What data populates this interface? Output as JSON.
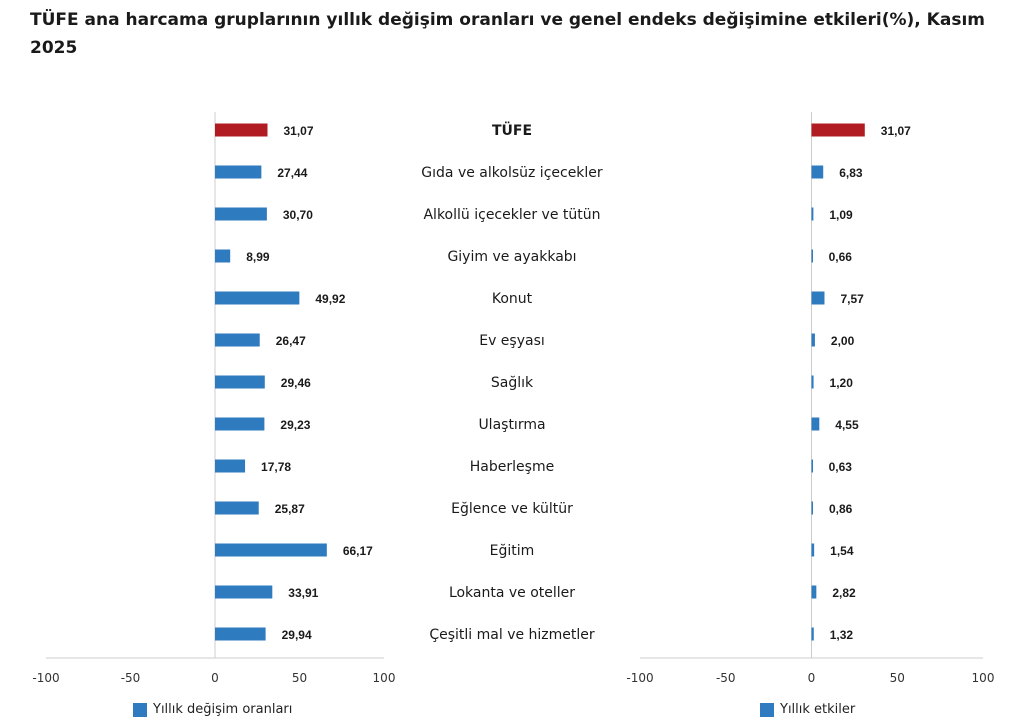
{
  "title": "TÜFE ana harcama gruplarının yıllık değişim oranları ve genel endeks değişimine etkileri(%), Kasım 2025",
  "colors": {
    "highlight": "#B01C22",
    "bar": "#2E7BBF",
    "axis": "#cccccc"
  },
  "chart_data": {
    "type": "bar",
    "orientation": "horizontal",
    "categories": [
      "TÜFE",
      "Gıda ve alkolsüz içecekler",
      "Alkollü içecekler ve tütün",
      "Giyim ve ayakkabı",
      "Konut",
      "Ev eşyası",
      "Sağlık",
      "Ulaştırma",
      "Haberleşme",
      "Eğlence ve kültür",
      "Eğitim",
      "Lokanta ve oteller",
      "Çeşitli mal ve hizmetler"
    ],
    "series": [
      {
        "name": "Yıllık değişim oranları",
        "values": [
          31.07,
          27.44,
          30.7,
          8.99,
          49.92,
          26.47,
          29.46,
          29.23,
          17.78,
          25.87,
          66.17,
          33.91,
          29.94
        ],
        "labels": [
          "31,07",
          "27,44",
          "30,70",
          "8,99",
          "49,92",
          "26,47",
          "29,46",
          "29,23",
          "17,78",
          "25,87",
          "66,17",
          "33,91",
          "29,94"
        ]
      },
      {
        "name": "Yıllık etkiler",
        "values": [
          31.07,
          6.83,
          1.09,
          0.66,
          7.57,
          2.0,
          1.2,
          4.55,
          0.63,
          0.86,
          1.54,
          2.82,
          1.32
        ],
        "labels": [
          "31,07",
          "6,83",
          "1,09",
          "0,66",
          "7,57",
          "2,00",
          "1,20",
          "4,55",
          "0,63",
          "0,86",
          "1,54",
          "2,82",
          "1,32"
        ]
      }
    ],
    "xlim": [
      -100,
      100
    ],
    "xticks": [
      -100,
      -50,
      0,
      50,
      100
    ],
    "xtick_labels": [
      "-100",
      "-50",
      "0",
      "50",
      "100"
    ],
    "highlight_category": "TÜFE",
    "legend_position": "bottom",
    "grid": false
  }
}
